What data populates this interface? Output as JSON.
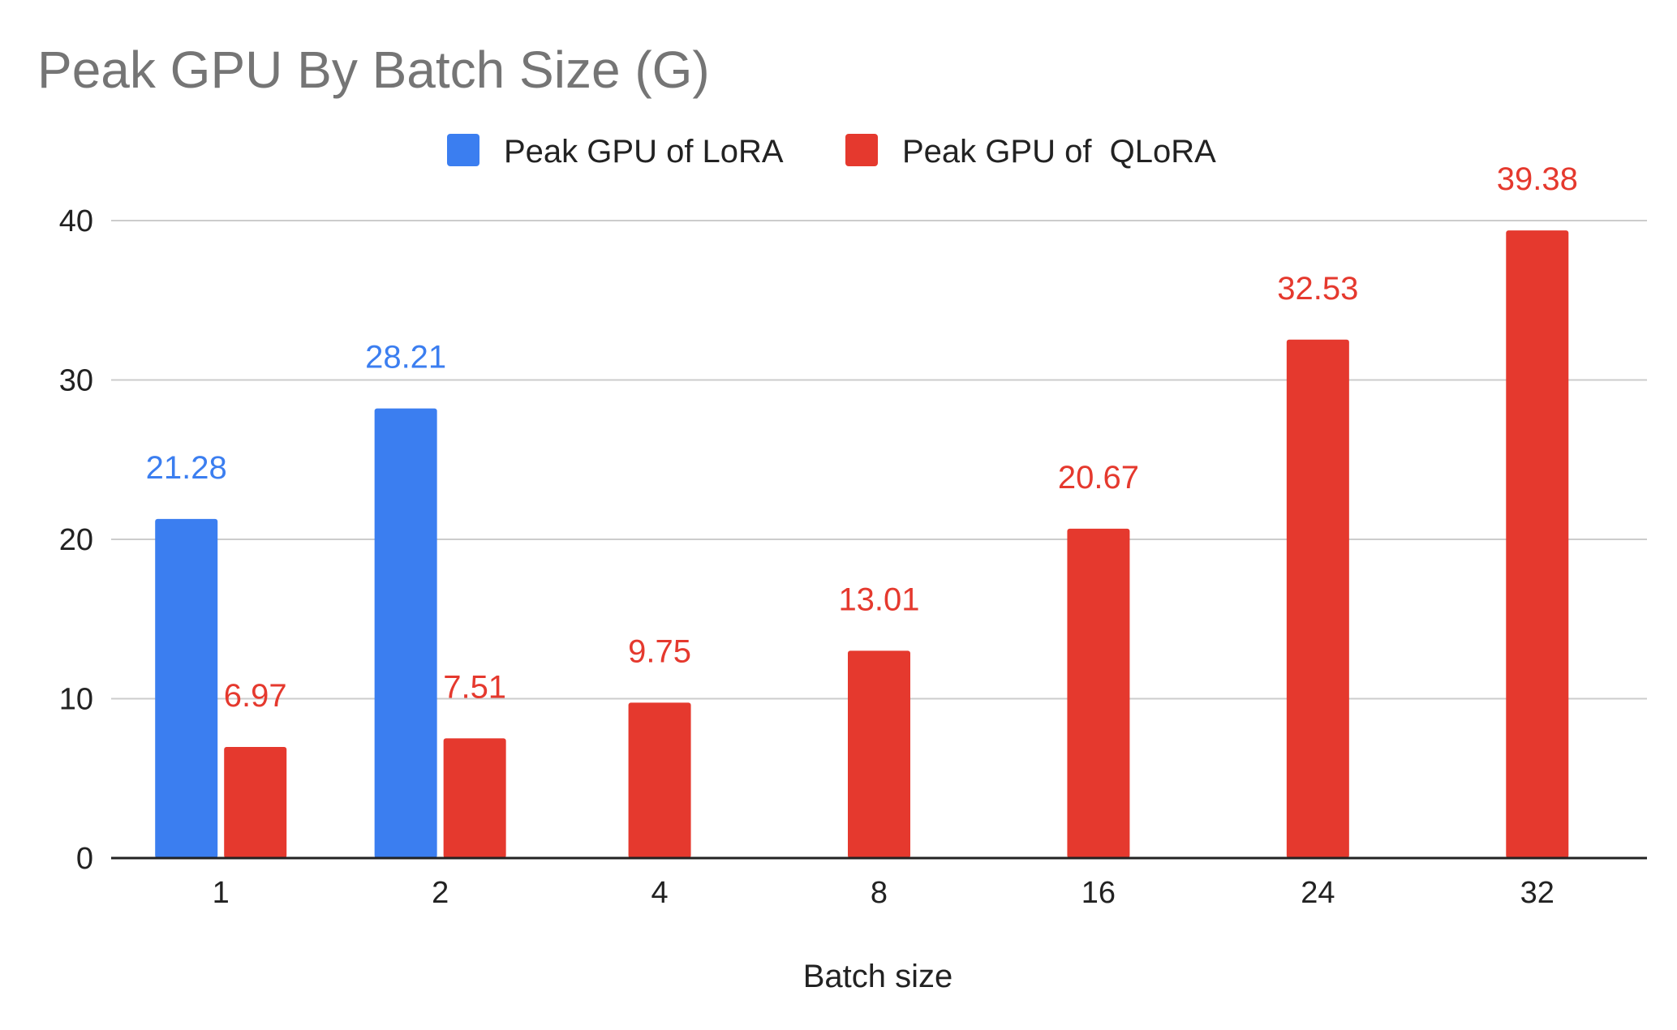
{
  "colors": {
    "lora": "#3B7EF0",
    "qlora": "#E5392E",
    "grid": "#CCCCCC",
    "axis": "#222222",
    "title": "#757575"
  },
  "chart_data": {
    "type": "bar",
    "title": "Peak GPU By Batch Size (G)",
    "xlabel": "Batch size",
    "ylabel": "",
    "categories": [
      "1",
      "2",
      "4",
      "8",
      "16",
      "24",
      "32"
    ],
    "ylim": [
      0,
      40
    ],
    "yticks": [
      0,
      10,
      20,
      30,
      40
    ],
    "grid": true,
    "legend_position": "top-center",
    "series": [
      {
        "name": "Peak GPU of LoRA",
        "color": "#3B7EF0",
        "values": [
          21.28,
          28.21,
          null,
          null,
          null,
          null,
          null
        ],
        "labels": [
          "21.28",
          "28.21",
          null,
          null,
          null,
          null,
          null
        ]
      },
      {
        "name": "Peak GPU of  QLoRA",
        "color": "#E5392E",
        "values": [
          6.97,
          7.51,
          9.75,
          13.01,
          20.67,
          32.53,
          39.38
        ],
        "labels": [
          "6.97",
          "7.51",
          "9.75",
          "13.01",
          "20.67",
          "32.53",
          "39.38"
        ]
      }
    ]
  }
}
